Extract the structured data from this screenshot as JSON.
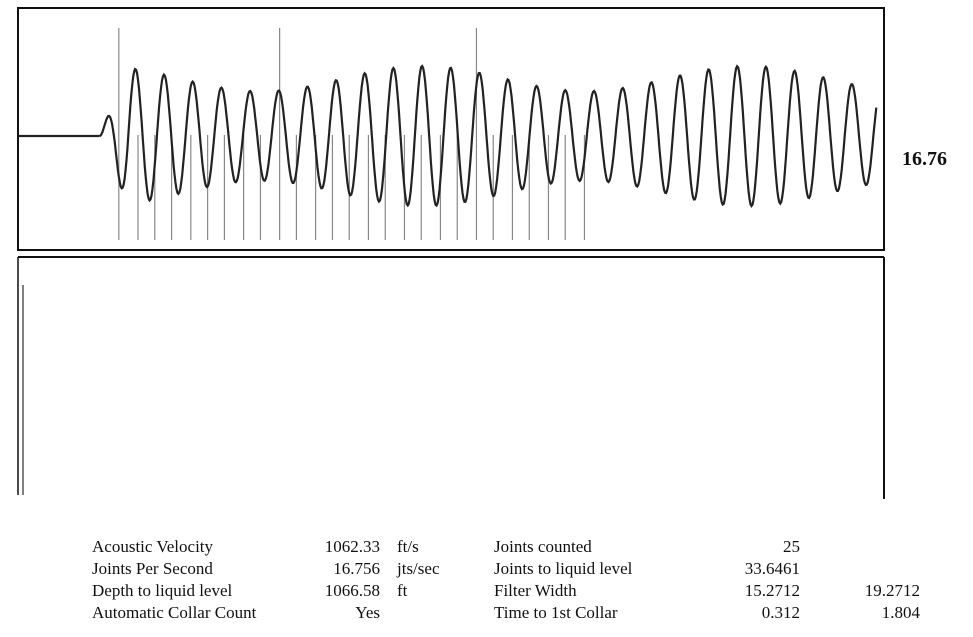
{
  "chart_data": {
    "type": "line",
    "title": "",
    "side_value": "16.76",
    "xlim": [
      0,
      1.804
    ],
    "ylim": [
      -1,
      1
    ],
    "trace_start": 0.17,
    "trace_end": 1.79,
    "collar_markers": [
      0.21,
      0.25,
      0.285,
      0.32,
      0.36,
      0.395,
      0.43,
      0.47,
      0.505,
      0.545,
      0.58,
      0.62,
      0.655,
      0.69,
      0.73,
      0.765,
      0.805,
      0.84,
      0.88,
      0.915,
      0.955,
      0.99,
      1.03,
      1.065,
      1.105,
      1.14,
      1.18
    ],
    "tall_markers": [
      0.21,
      0.545,
      0.955
    ],
    "stroke_color": "#222222",
    "marker_color": "#888888"
  },
  "stats": {
    "rows": [
      {
        "label": "Acoustic Velocity",
        "value": "1062.33",
        "unit": "ft/s",
        "label2": "Joints counted",
        "value2": "25",
        "value3": ""
      },
      {
        "label": "Joints Per Second",
        "value": "16.756",
        "unit": "jts/sec",
        "label2": "Joints to liquid level",
        "value2": "33.6461",
        "value3": ""
      },
      {
        "label": "Depth to liquid level",
        "value": "1066.58",
        "unit": "ft",
        "label2": "Filter Width",
        "value2": "15.2712",
        "value3": "19.2712"
      },
      {
        "label": "Automatic Collar Count",
        "value": "Yes",
        "unit": "",
        "label2": "Time to 1st Collar",
        "value2": "0.312",
        "value3": "1.804"
      }
    ]
  }
}
